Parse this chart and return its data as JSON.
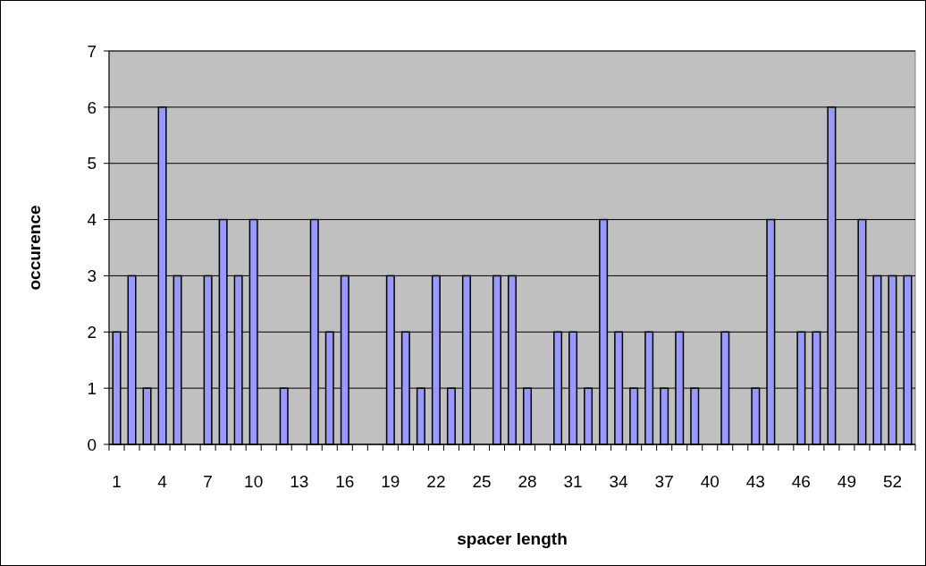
{
  "chart_data": {
    "type": "bar",
    "xlabel": "spacer length",
    "ylabel": "occurence",
    "categories": [
      "1",
      null,
      null,
      "4",
      null,
      null,
      "7",
      null,
      null,
      "10",
      null,
      null,
      "13",
      null,
      null,
      "16",
      null,
      null,
      "19",
      null,
      null,
      "22",
      null,
      null,
      "25",
      null,
      null,
      "28",
      null,
      null,
      "31",
      null,
      null,
      "34",
      null,
      null,
      "37",
      null,
      null,
      "40",
      null,
      null,
      "43",
      null,
      null,
      "46",
      null,
      null,
      "49",
      null,
      null,
      "52",
      null
    ],
    "values": [
      2,
      3,
      1,
      6,
      3,
      0,
      3,
      4,
      3,
      4,
      0,
      1,
      0,
      4,
      2,
      3,
      0,
      0,
      3,
      2,
      1,
      3,
      1,
      3,
      0,
      3,
      3,
      1,
      0,
      2,
      2,
      1,
      4,
      2,
      1,
      2,
      1,
      2,
      1,
      0,
      2,
      0,
      1,
      4,
      0,
      2,
      2,
      6,
      0,
      4,
      3,
      3,
      3
    ],
    "color": "#9999ff",
    "ylim": [
      0,
      7
    ],
    "yticks": [
      0,
      1,
      2,
      3,
      4,
      5,
      6,
      7
    ],
    "grid": "y"
  }
}
